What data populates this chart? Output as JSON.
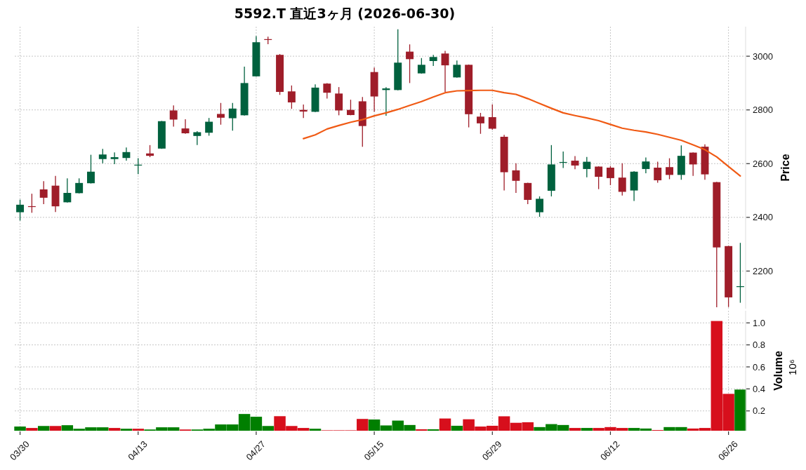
{
  "chart_data": [
    {
      "type": "candlestick",
      "title": "5592.T 直近3ヶ月 (2026-06-30)",
      "ylabel": "Price",
      "categories": [
        null,
        null,
        null,
        null,
        null,
        null,
        null,
        null,
        null,
        null,
        null,
        null,
        null,
        null,
        null,
        null,
        null,
        null,
        null,
        null,
        null,
        null,
        null,
        null,
        null,
        null,
        null,
        null,
        null,
        null,
        null,
        null,
        null,
        null,
        null,
        null,
        null,
        null,
        null,
        null,
        null,
        null,
        null,
        null,
        null,
        null,
        null,
        null,
        null,
        null,
        null,
        null,
        null,
        null,
        null,
        null,
        null,
        null,
        null,
        null,
        null,
        null
      ],
      "ohlc": [
        [
          2419,
          2466,
          2388,
          2447
        ],
        [
          2441,
          2488,
          2417,
          2439
        ],
        [
          2504,
          2535,
          2449,
          2473
        ],
        [
          2518,
          2554,
          2420,
          2441
        ],
        [
          2456,
          2545,
          2455,
          2491
        ],
        [
          2490,
          2545,
          2489,
          2528
        ],
        [
          2527,
          2633,
          2526,
          2570
        ],
        [
          2617,
          2655,
          2601,
          2634
        ],
        [
          2617,
          2642,
          2598,
          2624
        ],
        [
          2621,
          2660,
          2611,
          2643
        ],
        [
          2593,
          2620,
          2561,
          2596
        ],
        [
          2638,
          2669,
          2624,
          2629
        ],
        [
          2656,
          2759,
          2655,
          2758
        ],
        [
          2798,
          2817,
          2738,
          2764
        ],
        [
          2731,
          2765,
          2711,
          2713
        ],
        [
          2703,
          2721,
          2669,
          2717
        ],
        [
          2715,
          2770,
          2704,
          2756
        ],
        [
          2785,
          2826,
          2745,
          2771
        ],
        [
          2769,
          2826,
          2723,
          2805
        ],
        [
          2780,
          2961,
          2779,
          2900
        ],
        [
          2925,
          3075,
          2924,
          3052
        ],
        [
          3063,
          3073,
          3045,
          3061
        ],
        [
          3005,
          3008,
          2856,
          2867
        ],
        [
          2869,
          2891,
          2804,
          2828
        ],
        [
          2800,
          2820,
          2770,
          2794
        ],
        [
          2793,
          2895,
          2792,
          2883
        ],
        [
          2898,
          2900,
          2842,
          2864
        ],
        [
          2861,
          2885,
          2780,
          2798
        ],
        [
          2800,
          2838,
          2780,
          2781
        ],
        [
          2832,
          2848,
          2663,
          2740
        ],
        [
          2941,
          2958,
          2793,
          2850
        ],
        [
          2874,
          2885,
          2778,
          2880
        ],
        [
          2874,
          3100,
          2873,
          2976
        ],
        [
          3017,
          3044,
          2900,
          2989
        ],
        [
          2936,
          2993,
          2935,
          2968
        ],
        [
          2982,
          3005,
          2964,
          2997
        ],
        [
          3010,
          3020,
          2867,
          2966
        ],
        [
          2921,
          2984,
          2920,
          2968
        ],
        [
          2968,
          2969,
          2735,
          2784
        ],
        [
          2775,
          2789,
          2711,
          2750
        ],
        [
          2773,
          2821,
          2726,
          2730
        ],
        [
          2700,
          2707,
          2500,
          2568
        ],
        [
          2575,
          2601,
          2491,
          2536
        ],
        [
          2528,
          2529,
          2449,
          2465
        ],
        [
          2419,
          2478,
          2402,
          2469
        ],
        [
          2499,
          2669,
          2478,
          2597
        ],
        [
          2603,
          2645,
          2584,
          2606
        ],
        [
          2611,
          2628,
          2579,
          2593
        ],
        [
          2580,
          2625,
          2549,
          2607
        ],
        [
          2589,
          2590,
          2505,
          2551
        ],
        [
          2585,
          2591,
          2520,
          2546
        ],
        [
          2548,
          2601,
          2481,
          2495
        ],
        [
          2500,
          2572,
          2461,
          2570
        ],
        [
          2580,
          2623,
          2564,
          2608
        ],
        [
          2585,
          2607,
          2529,
          2538
        ],
        [
          2587,
          2620,
          2542,
          2558
        ],
        [
          2558,
          2668,
          2540,
          2629
        ],
        [
          2641,
          2642,
          2554,
          2597
        ],
        [
          2663,
          2672,
          2540,
          2560
        ],
        [
          2531,
          2532,
          2065,
          2288
        ],
        [
          2293,
          2294,
          2066,
          2102
        ],
        [
          2141,
          2305,
          2082,
          2143
        ]
      ],
      "colors": [
        "#00613e",
        "#9f1d29",
        "#9f1d29",
        "#9f1d29",
        "#00613e",
        "#00613e",
        "#00613e",
        "#00613e",
        "#00613e",
        "#00613e",
        "#00613e",
        "#9f1d29",
        "#00613e",
        "#9f1d29",
        "#9f1d29",
        "#00613e",
        "#00613e",
        "#9f1d29",
        "#00613e",
        "#00613e",
        "#00613e",
        "#9f1d29",
        "#9f1d29",
        "#9f1d29",
        "#9f1d29",
        "#00613e",
        "#9f1d29",
        "#9f1d29",
        "#9f1d29",
        "#9f1d29",
        "#9f1d29",
        "#00613e",
        "#00613e",
        "#9f1d29",
        "#00613e",
        "#00613e",
        "#9f1d29",
        "#00613e",
        "#9f1d29",
        "#9f1d29",
        "#9f1d29",
        "#9f1d29",
        "#9f1d29",
        "#9f1d29",
        "#00613e",
        "#00613e",
        "#00613e",
        "#9f1d29",
        "#00613e",
        "#9f1d29",
        "#9f1d29",
        "#9f1d29",
        "#00613e",
        "#00613e",
        "#9f1d29",
        "#9f1d29",
        "#00613e",
        "#9f1d29",
        "#9f1d29",
        "#9f1d29",
        "#9f1d29",
        "#00613e"
      ],
      "series": [
        {
          "type": "line",
          "color": "#f05a14",
          "values": [
            null,
            null,
            null,
            null,
            null,
            null,
            null,
            null,
            null,
            null,
            null,
            null,
            null,
            null,
            null,
            null,
            null,
            null,
            null,
            null,
            null,
            null,
            null,
            null,
            2693,
            2707,
            2729,
            2742,
            2754,
            2764,
            2778,
            2789,
            2802,
            2817,
            2831,
            2848,
            2864,
            2871,
            2872,
            2873,
            2873,
            2864,
            2858,
            2842,
            2824,
            2806,
            2789,
            2779,
            2770,
            2760,
            2746,
            2732,
            2724,
            2718,
            2709,
            2698,
            2687,
            2670,
            2652,
            2625,
            2589,
            2554
          ]
        }
      ],
      "ylim": [
        2060,
        3110
      ],
      "yticks": [
        2200,
        2400,
        2600,
        2800,
        3000
      ],
      "grid": true
    },
    {
      "type": "bar",
      "ylabel": "Volume",
      "annotations": [
        "10⁶"
      ],
      "categories": [
        "03/30",
        null,
        null,
        null,
        null,
        null,
        null,
        null,
        null,
        null,
        "04/13",
        null,
        null,
        null,
        null,
        null,
        null,
        null,
        null,
        null,
        "04/27",
        null,
        null,
        null,
        null,
        null,
        null,
        null,
        null,
        null,
        "05/15",
        null,
        null,
        null,
        null,
        null,
        null,
        null,
        null,
        null,
        "05/29",
        null,
        null,
        null,
        null,
        null,
        null,
        null,
        null,
        null,
        "06/12",
        null,
        null,
        null,
        null,
        null,
        null,
        null,
        null,
        null,
        "06/26",
        null
      ],
      "values": [
        0.058,
        0.045,
        0.063,
        0.063,
        0.07,
        0.038,
        0.051,
        0.051,
        0.045,
        0.038,
        0.038,
        0.031,
        0.051,
        0.051,
        0.031,
        0.031,
        0.038,
        0.077,
        0.077,
        0.172,
        0.147,
        0.063,
        0.152,
        0.063,
        0.045,
        0.038,
        0.024,
        0.024,
        0.024,
        0.127,
        0.122,
        0.068,
        0.112,
        0.072,
        0.033,
        0.033,
        0.131,
        0.065,
        0.124,
        0.058,
        0.065,
        0.151,
        0.092,
        0.097,
        0.053,
        0.08,
        0.072,
        0.045,
        0.045,
        0.045,
        0.053,
        0.045,
        0.045,
        0.04,
        0.026,
        0.053,
        0.053,
        0.04,
        0.045,
        1.017,
        0.355,
        0.394
      ],
      "colors": [
        "#007f00",
        "#d70f1c",
        "#007f00",
        "#d70f1c",
        "#007f00",
        "#007f00",
        "#007f00",
        "#007f00",
        "#d70f1c",
        "#007f00",
        "#d70f1c",
        "#007f00",
        "#007f00",
        "#007f00",
        "#d70f1c",
        "#007f00",
        "#007f00",
        "#007f00",
        "#007f00",
        "#007f00",
        "#007f00",
        "#007f00",
        "#d70f1c",
        "#d70f1c",
        "#d70f1c",
        "#007f00",
        "#d70f1c",
        "#d70f1c",
        "#d70f1c",
        "#d70f1c",
        "#007f00",
        "#007f00",
        "#007f00",
        "#007f00",
        "#d70f1c",
        "#007f00",
        "#d70f1c",
        "#007f00",
        "#d70f1c",
        "#d70f1c",
        "#d70f1c",
        "#d70f1c",
        "#d70f1c",
        "#d70f1c",
        "#007f00",
        "#007f00",
        "#007f00",
        "#d70f1c",
        "#007f00",
        "#d70f1c",
        "#d70f1c",
        "#d70f1c",
        "#007f00",
        "#007f00",
        "#d70f1c",
        "#007f00",
        "#007f00",
        "#d70f1c",
        "#d70f1c",
        "#d70f1c",
        "#d70f1c",
        "#007f00"
      ],
      "ylim": [
        0.02,
        1.11
      ],
      "yticks": [
        0.2,
        0.4,
        0.6,
        0.8,
        {
          "value": 1,
          "label": "1.0"
        }
      ],
      "grid": true
    }
  ]
}
